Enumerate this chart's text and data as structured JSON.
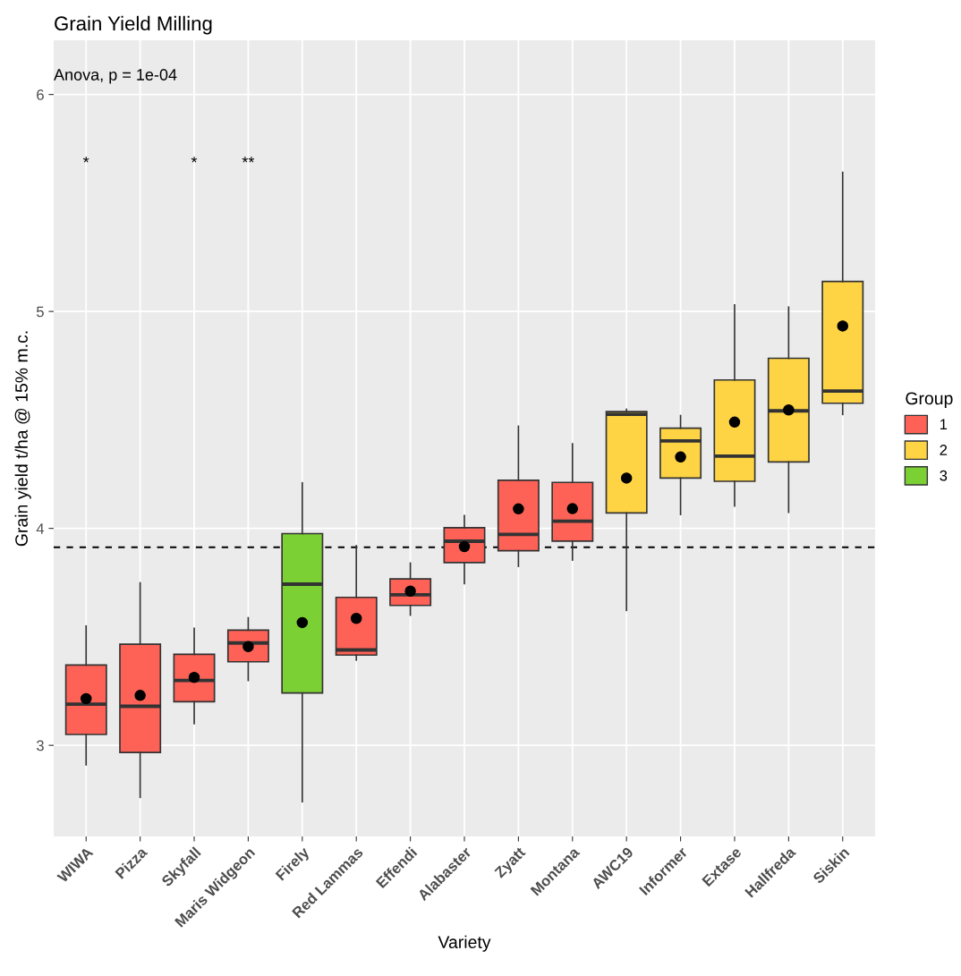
{
  "chart_data": {
    "type": "box",
    "title": "Grain Yield Milling",
    "xlabel": "Variety",
    "ylabel": "Grain yield t/ha @ 15% m.c.",
    "legend_title": "Group",
    "legend": "right",
    "grid": true,
    "categories": [
      "WIWA",
      "Pizza",
      "Skyfall",
      "Maris Widgeon",
      "Firely",
      "Red Lammas",
      "Effendi",
      "Alabaster",
      "Zyatt",
      "Montana",
      "AWC19",
      "Informer",
      "Extase",
      "Hallfreda",
      "Siskin"
    ],
    "ylim": [
      2.58,
      6.25
    ],
    "yticks": [
      3,
      4,
      5,
      6
    ],
    "series": [
      {
        "name": "1",
        "color": "#fe6257",
        "boxes": [
          {
            "low": 2.91,
            "q1": 3.05,
            "median": 3.19,
            "q3": 3.37,
            "high": 3.55,
            "mean": 3.215
          },
          {
            "low": 2.76,
            "q1": 2.967,
            "median": 3.18,
            "q3": 3.466,
            "high": 3.749,
            "mean": 3.23
          },
          {
            "low": 3.1,
            "q1": 3.201,
            "median": 3.299,
            "q3": 3.42,
            "high": 3.539,
            "mean": 3.313
          },
          {
            "low": 3.299,
            "q1": 3.385,
            "median": 3.472,
            "q3": 3.531,
            "high": 3.588,
            "mean": 3.455
          },
          null,
          {
            "low": 3.393,
            "q1": 3.416,
            "median": 3.44,
            "q3": 3.682,
            "high": 3.92,
            "mean": 3.585
          },
          {
            "low": 3.6,
            "q1": 3.645,
            "median": 3.694,
            "q3": 3.767,
            "high": 3.84,
            "mean": 3.711
          },
          {
            "low": 3.745,
            "q1": 3.842,
            "median": 3.941,
            "q3": 4.003,
            "high": 4.059,
            "mean": 3.916
          },
          {
            "low": 3.825,
            "q1": 3.897,
            "median": 3.972,
            "q3": 4.222,
            "high": 4.471,
            "mean": 4.09
          },
          {
            "low": 3.854,
            "q1": 3.941,
            "median": 4.033,
            "q3": 4.212,
            "high": 4.39,
            "mean": 4.091
          },
          null,
          null,
          null,
          null,
          null
        ]
      },
      {
        "name": "2",
        "color": "#fed444",
        "boxes": [
          null,
          null,
          null,
          null,
          null,
          null,
          null,
          null,
          null,
          null,
          {
            "low": 3.622,
            "q1": 4.071,
            "median": 4.526,
            "q3": 4.538,
            "high": 4.549,
            "mean": 4.232
          },
          {
            "low": 4.064,
            "q1": 4.232,
            "median": 4.403,
            "q3": 4.462,
            "high": 4.52,
            "mean": 4.329
          },
          {
            "low": 4.103,
            "q1": 4.217,
            "median": 4.333,
            "q3": 4.684,
            "high": 5.03,
            "mean": 4.49
          },
          {
            "low": 4.074,
            "q1": 4.306,
            "median": 4.542,
            "q3": 4.784,
            "high": 5.02,
            "mean": 4.546
          },
          {
            "low": 4.525,
            "q1": 4.577,
            "median": 4.633,
            "q3": 5.138,
            "high": 5.641,
            "mean": 4.933
          }
        ]
      },
      {
        "name": "3",
        "color": "#7bd034",
        "boxes": [
          null,
          null,
          null,
          null,
          {
            "low": 2.74,
            "q1": 3.241,
            "median": 3.743,
            "q3": 3.976,
            "high": 4.21,
            "mean": 3.566
          },
          null,
          null,
          null,
          null,
          null,
          null,
          null,
          null,
          null,
          null
        ]
      }
    ],
    "ref_lines": [
      {
        "axis": "y",
        "value": 3.913,
        "line_style": "dashed",
        "color": "#000000"
      }
    ],
    "annotations": [
      "Anova, p = 1e-04",
      "*",
      "*",
      "**"
    ]
  }
}
